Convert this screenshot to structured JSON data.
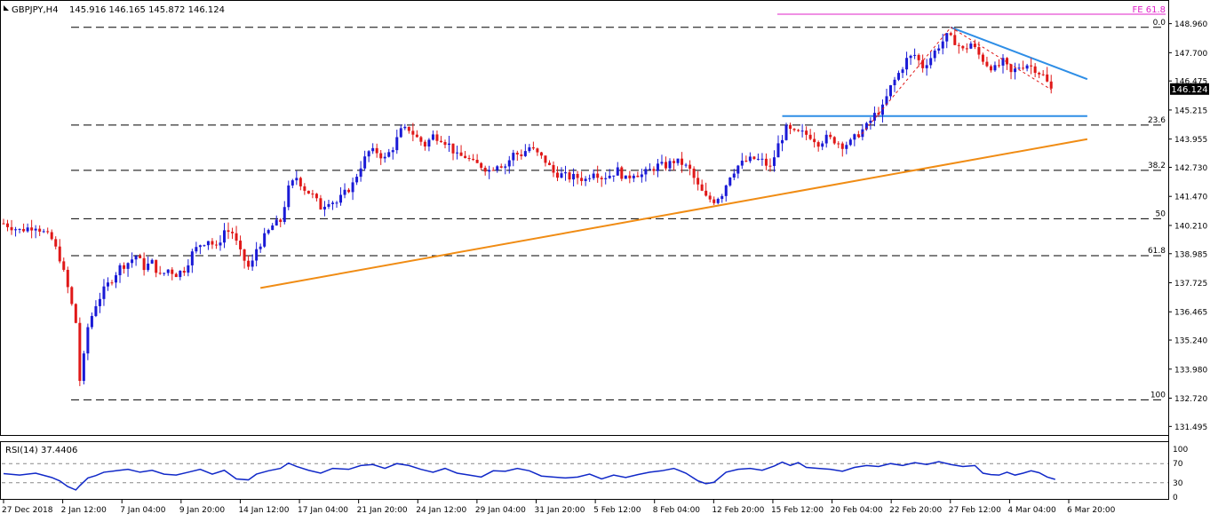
{
  "header": {
    "symbol_label": "GBPJPY,H4",
    "ohlc_values": "145.916 146.165 145.872 146.124"
  },
  "current_price_tag": "146.124",
  "fe_label": "FE 61.8",
  "colors": {
    "bull_candle": "#1a1ad6",
    "bear_candle": "#e01818",
    "trendline_orange": "#f08c14",
    "trendline_blue": "#2e8ee6",
    "fe_line": "#e020c8",
    "fib_dash": "#000000",
    "rsi_line": "#1028c8"
  },
  "rsi": {
    "title": "RSI(14) 37.4406",
    "levels": [
      "100",
      "70",
      "30",
      "0"
    ]
  },
  "chart_data": {
    "type": "candlestick",
    "symbol": "GBPJPY",
    "timeframe": "H4",
    "ohlc_last": {
      "open": 145.916,
      "high": 146.165,
      "low": 145.872,
      "close": 146.124
    },
    "ylim": [
      131.2,
      149.6
    ],
    "y_ticks": [
      "148.960",
      "147.700",
      "146.475",
      "145.215",
      "143.955",
      "142.730",
      "141.470",
      "140.210",
      "138.985",
      "137.725",
      "136.465",
      "135.240",
      "133.980",
      "132.720",
      "131.495"
    ],
    "x_ticks": [
      "27 Dec 2018",
      "2 Jan 12:00",
      "7 Jan 04:00",
      "9 Jan 20:00",
      "14 Jan 12:00",
      "17 Jan 04:00",
      "21 Jan 20:00",
      "24 Jan 12:00",
      "29 Jan 04:00",
      "31 Jan 20:00",
      "5 Feb 12:00",
      "8 Feb 04:00",
      "12 Feb 20:00",
      "15 Feb 12:00",
      "20 Feb 04:00",
      "22 Feb 20:00",
      "27 Feb 12:00",
      "4 Mar 04:00",
      "6 Mar 20:00"
    ],
    "fib_levels": [
      {
        "label": "0.0",
        "price": 148.8
      },
      {
        "label": "23.6",
        "price": 144.56
      },
      {
        "label": "38.2",
        "price": 142.6
      },
      {
        "label": "50",
        "price": 140.5
      },
      {
        "label": "61.8",
        "price": 138.9
      },
      {
        "label": "100",
        "price": 132.65
      }
    ],
    "fe_level": {
      "label": "FE 61.8",
      "price": 150.25
    },
    "close_path": [
      [
        0,
        140.3
      ],
      [
        4,
        140.0
      ],
      [
        8,
        140.2
      ],
      [
        12,
        139.6
      ],
      [
        14,
        138.8
      ],
      [
        16,
        137.5
      ],
      [
        18,
        136.0
      ],
      [
        19,
        133.5
      ],
      [
        20,
        134.5
      ],
      [
        21,
        135.8
      ],
      [
        23,
        136.8
      ],
      [
        25,
        137.4
      ],
      [
        27,
        137.9
      ],
      [
        29,
        138.4
      ],
      [
        31,
        138.6
      ],
      [
        33,
        138.9
      ],
      [
        35,
        138.4
      ],
      [
        37,
        138.6
      ],
      [
        39,
        138.0
      ],
      [
        41,
        138.3
      ],
      [
        43,
        138.1
      ],
      [
        45,
        138.3
      ],
      [
        47,
        139.0
      ],
      [
        49,
        139.4
      ],
      [
        51,
        139.6
      ],
      [
        53,
        139.2
      ],
      [
        55,
        140.0
      ],
      [
        57,
        139.9
      ],
      [
        59,
        139.0
      ],
      [
        61,
        138.4
      ],
      [
        62,
        138.6
      ],
      [
        63,
        139.2
      ],
      [
        65,
        139.7
      ],
      [
        67,
        140.2
      ],
      [
        69,
        140.4
      ],
      [
        71,
        141.8
      ],
      [
        73,
        142.3
      ],
      [
        75,
        141.8
      ],
      [
        77,
        141.5
      ],
      [
        79,
        141.0
      ],
      [
        81,
        141.3
      ],
      [
        83,
        141.2
      ],
      [
        85,
        141.6
      ],
      [
        87,
        142.0
      ],
      [
        89,
        142.8
      ],
      [
        91,
        143.4
      ],
      [
        93,
        143.4
      ],
      [
        95,
        143.1
      ],
      [
        97,
        143.6
      ],
      [
        99,
        144.3
      ],
      [
        101,
        144.4
      ],
      [
        103,
        144.0
      ],
      [
        105,
        143.7
      ],
      [
        107,
        144.1
      ],
      [
        109,
        144.0
      ],
      [
        111,
        143.7
      ],
      [
        113,
        143.2
      ],
      [
        115,
        143.2
      ],
      [
        117,
        142.9
      ],
      [
        119,
        142.8
      ],
      [
        121,
        142.6
      ],
      [
        123,
        142.9
      ],
      [
        125,
        142.8
      ],
      [
        127,
        143.3
      ],
      [
        129,
        143.3
      ],
      [
        131,
        143.6
      ],
      [
        133,
        143.3
      ],
      [
        135,
        143.0
      ],
      [
        137,
        142.5
      ],
      [
        139,
        142.4
      ],
      [
        141,
        142.3
      ],
      [
        143,
        142.3
      ],
      [
        145,
        142.2
      ],
      [
        147,
        142.6
      ],
      [
        149,
        142.3
      ],
      [
        151,
        142.4
      ],
      [
        153,
        142.6
      ],
      [
        155,
        142.2
      ],
      [
        157,
        142.5
      ],
      [
        159,
        142.4
      ],
      [
        161,
        142.6
      ],
      [
        163,
        142.8
      ],
      [
        165,
        142.8
      ],
      [
        167,
        143.0
      ],
      [
        169,
        142.9
      ],
      [
        171,
        142.6
      ],
      [
        173,
        141.9
      ],
      [
        175,
        141.4
      ],
      [
        177,
        141.3
      ],
      [
        179,
        141.6
      ],
      [
        181,
        142.4
      ],
      [
        183,
        142.8
      ],
      [
        185,
        143.0
      ],
      [
        187,
        143.1
      ],
      [
        189,
        143.0
      ],
      [
        191,
        142.7
      ],
      [
        193,
        143.7
      ],
      [
        195,
        144.4
      ],
      [
        197,
        144.2
      ],
      [
        199,
        144.2
      ],
      [
        201,
        144.1
      ],
      [
        203,
        143.8
      ],
      [
        205,
        144.0
      ],
      [
        207,
        143.9
      ],
      [
        209,
        143.7
      ],
      [
        211,
        143.8
      ],
      [
        213,
        144.2
      ],
      [
        215,
        144.5
      ],
      [
        217,
        145.0
      ],
      [
        219,
        145.3
      ],
      [
        221,
        146.2
      ],
      [
        223,
        146.8
      ],
      [
        225,
        147.4
      ],
      [
        227,
        147.6
      ],
      [
        229,
        147.1
      ],
      [
        231,
        147.5
      ],
      [
        233,
        148.0
      ],
      [
        235,
        148.4
      ],
      [
        237,
        148.2
      ],
      [
        239,
        147.8
      ],
      [
        241,
        148.1
      ],
      [
        243,
        147.6
      ],
      [
        245,
        147.2
      ],
      [
        247,
        147.0
      ],
      [
        249,
        147.3
      ],
      [
        251,
        146.8
      ],
      [
        253,
        147.1
      ],
      [
        255,
        147.2
      ],
      [
        257,
        147.0
      ],
      [
        259,
        146.7
      ],
      [
        261,
        146.1
      ]
    ],
    "rsi_series": [
      {
        "name": "RSI(14)",
        "last": 37.4406,
        "values": [
          [
            0,
            49
          ],
          [
            4,
            46
          ],
          [
            8,
            50
          ],
          [
            12,
            41
          ],
          [
            14,
            34
          ],
          [
            16,
            22
          ],
          [
            18,
            15
          ],
          [
            19,
            24
          ],
          [
            21,
            40
          ],
          [
            23,
            45
          ],
          [
            25,
            52
          ],
          [
            28,
            55
          ],
          [
            31,
            58
          ],
          [
            34,
            52
          ],
          [
            37,
            56
          ],
          [
            40,
            48
          ],
          [
            43,
            46
          ],
          [
            46,
            52
          ],
          [
            49,
            58
          ],
          [
            52,
            48
          ],
          [
            55,
            56
          ],
          [
            58,
            38
          ],
          [
            61,
            36
          ],
          [
            63,
            48
          ],
          [
            66,
            55
          ],
          [
            69,
            60
          ],
          [
            71,
            71
          ],
          [
            73,
            64
          ],
          [
            76,
            56
          ],
          [
            79,
            50
          ],
          [
            82,
            60
          ],
          [
            86,
            58
          ],
          [
            89,
            66
          ],
          [
            92,
            68
          ],
          [
            95,
            60
          ],
          [
            98,
            70
          ],
          [
            101,
            66
          ],
          [
            104,
            58
          ],
          [
            107,
            52
          ],
          [
            110,
            60
          ],
          [
            113,
            50
          ],
          [
            116,
            46
          ],
          [
            119,
            42
          ],
          [
            122,
            55
          ],
          [
            125,
            54
          ],
          [
            128,
            60
          ],
          [
            131,
            55
          ],
          [
            134,
            44
          ],
          [
            137,
            42
          ],
          [
            140,
            40
          ],
          [
            143,
            42
          ],
          [
            146,
            48
          ],
          [
            149,
            38
          ],
          [
            152,
            46
          ],
          [
            155,
            41
          ],
          [
            158,
            47
          ],
          [
            161,
            52
          ],
          [
            164,
            55
          ],
          [
            167,
            60
          ],
          [
            170,
            50
          ],
          [
            173,
            34
          ],
          [
            175,
            28
          ],
          [
            177,
            31
          ],
          [
            180,
            52
          ],
          [
            183,
            58
          ],
          [
            186,
            60
          ],
          [
            189,
            56
          ],
          [
            192,
            65
          ],
          [
            194,
            73
          ],
          [
            196,
            66
          ],
          [
            198,
            72
          ],
          [
            200,
            62
          ],
          [
            203,
            60
          ],
          [
            206,
            58
          ],
          [
            209,
            54
          ],
          [
            212,
            62
          ],
          [
            215,
            66
          ],
          [
            218,
            64
          ],
          [
            221,
            70
          ],
          [
            224,
            66
          ],
          [
            227,
            72
          ],
          [
            230,
            68
          ],
          [
            233,
            74
          ],
          [
            236,
            68
          ],
          [
            239,
            64
          ],
          [
            242,
            66
          ],
          [
            244,
            50
          ],
          [
            246,
            47
          ],
          [
            248,
            46
          ],
          [
            250,
            52
          ],
          [
            252,
            46
          ],
          [
            254,
            50
          ],
          [
            256,
            55
          ],
          [
            258,
            51
          ],
          [
            260,
            42
          ],
          [
            262,
            37
          ]
        ]
      }
    ],
    "trendlines": [
      {
        "name": "support",
        "color": "orange",
        "from": [
          64,
          137.5
        ],
        "to": [
          270,
          143.95
        ]
      },
      {
        "name": "resistance",
        "color": "blue",
        "from": [
          236,
          148.8
        ],
        "to": [
          270,
          146.55
        ]
      },
      {
        "name": "horizontal",
        "color": "blue",
        "from": [
          194,
          144.95
        ],
        "to": [
          270,
          144.95
        ]
      }
    ],
    "grid": false,
    "legend": "none"
  }
}
